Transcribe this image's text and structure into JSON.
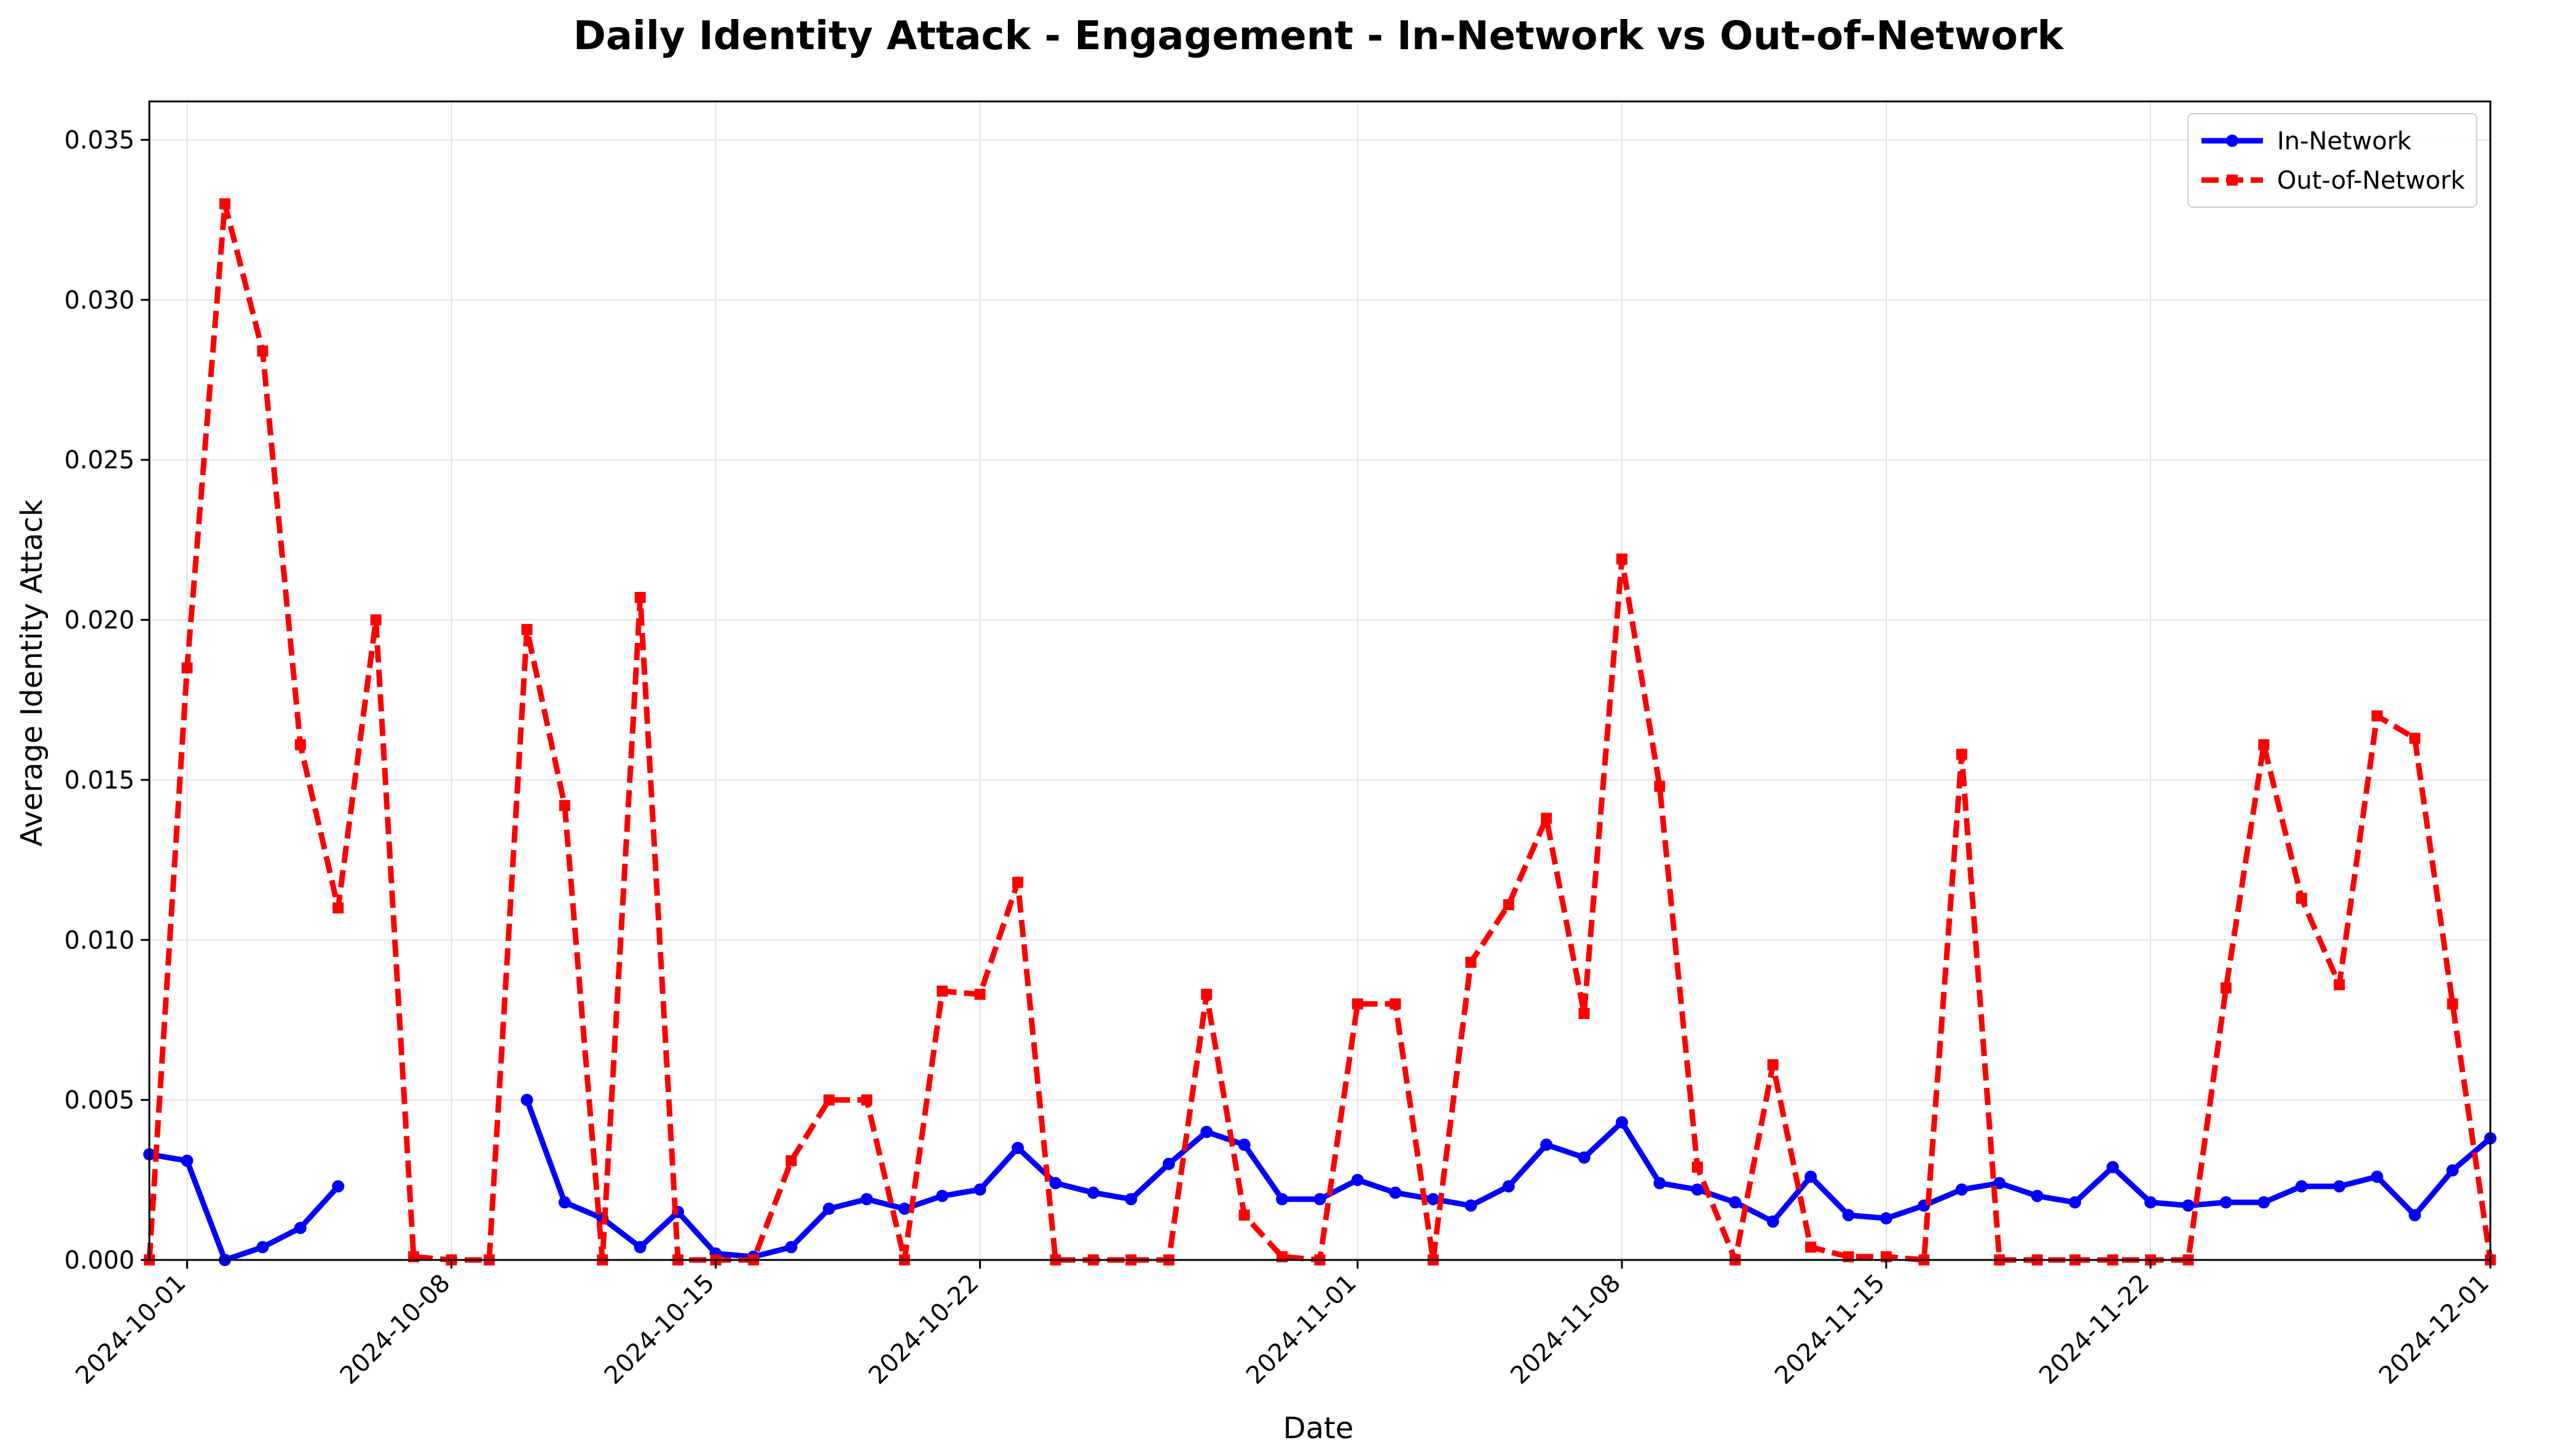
{
  "chart_data": {
    "type": "line",
    "title": "Daily Identity Attack - Engagement - In-Network vs Out-of-Network",
    "xlabel": "Date",
    "ylabel": "Average Identity Attack",
    "xlim": [
      "2024-09-30",
      "2024-12-01"
    ],
    "ylim": [
      0,
      0.0362
    ],
    "x_ticks": [
      "2024-10-01",
      "2024-10-08",
      "2024-10-15",
      "2024-10-22",
      "2024-11-01",
      "2024-11-08",
      "2024-11-15",
      "2024-11-22",
      "2024-12-01"
    ],
    "y_ticks": [
      "0.000",
      "0.005",
      "0.010",
      "0.015",
      "0.020",
      "0.025",
      "0.030",
      "0.035"
    ],
    "grid": true,
    "legend_position": "top-right",
    "series": [
      {
        "name": "In-Network",
        "color": "#0000ff",
        "style": "solid",
        "marker": "circle",
        "points": [
          [
            "2024-09-30",
            0.0033
          ],
          [
            "2024-10-01",
            0.0031
          ],
          [
            "2024-10-02",
            0.0
          ],
          [
            "2024-10-03",
            0.0004
          ],
          [
            "2024-10-04",
            0.001
          ],
          [
            "2024-10-05",
            0.0023
          ],
          [
            "2024-10-06",
            null
          ],
          [
            "2024-10-07",
            null
          ],
          [
            "2024-10-08",
            null
          ],
          [
            "2024-10-09",
            null
          ],
          [
            "2024-10-10",
            0.005
          ],
          [
            "2024-10-11",
            0.0018
          ],
          [
            "2024-10-12",
            0.0013
          ],
          [
            "2024-10-13",
            0.0004
          ],
          [
            "2024-10-14",
            0.0015
          ],
          [
            "2024-10-15",
            0.0002
          ],
          [
            "2024-10-16",
            0.0001
          ],
          [
            "2024-10-17",
            0.0004
          ],
          [
            "2024-10-18",
            0.0016
          ],
          [
            "2024-10-19",
            0.0019
          ],
          [
            "2024-10-20",
            0.0016
          ],
          [
            "2024-10-21",
            0.002
          ],
          [
            "2024-10-22",
            0.0022
          ],
          [
            "2024-10-23",
            0.0035
          ],
          [
            "2024-10-24",
            0.0024
          ],
          [
            "2024-10-25",
            0.0021
          ],
          [
            "2024-10-26",
            0.0019
          ],
          [
            "2024-10-27",
            0.003
          ],
          [
            "2024-10-28",
            0.004
          ],
          [
            "2024-10-29",
            0.0036
          ],
          [
            "2024-10-30",
            0.0019
          ],
          [
            "2024-10-31",
            0.0019
          ],
          [
            "2024-11-01",
            0.0025
          ],
          [
            "2024-11-02",
            0.0021
          ],
          [
            "2024-11-03",
            0.0019
          ],
          [
            "2024-11-04",
            0.0017
          ],
          [
            "2024-11-05",
            0.0023
          ],
          [
            "2024-11-06",
            0.0036
          ],
          [
            "2024-11-07",
            0.0032
          ],
          [
            "2024-11-08",
            0.0043
          ],
          [
            "2024-11-09",
            0.0024
          ],
          [
            "2024-11-10",
            0.0022
          ],
          [
            "2024-11-11",
            0.0018
          ],
          [
            "2024-11-12",
            0.0012
          ],
          [
            "2024-11-13",
            0.0026
          ],
          [
            "2024-11-14",
            0.0014
          ],
          [
            "2024-11-15",
            0.0013
          ],
          [
            "2024-11-16",
            0.0017
          ],
          [
            "2024-11-17",
            0.0022
          ],
          [
            "2024-11-18",
            0.0024
          ],
          [
            "2024-11-19",
            0.002
          ],
          [
            "2024-11-20",
            0.0018
          ],
          [
            "2024-11-21",
            0.0029
          ],
          [
            "2024-11-22",
            0.0018
          ],
          [
            "2024-11-23",
            0.0017
          ],
          [
            "2024-11-24",
            0.0018
          ],
          [
            "2024-11-25",
            0.0018
          ],
          [
            "2024-11-26",
            0.0023
          ],
          [
            "2024-11-27",
            0.0023
          ],
          [
            "2024-11-28",
            0.0026
          ],
          [
            "2024-11-29",
            0.0014
          ],
          [
            "2024-11-30",
            0.0028
          ],
          [
            "2024-12-01",
            0.0038
          ]
        ]
      },
      {
        "name": "Out-of-Network",
        "color": "#ff0000",
        "style": "dashed",
        "marker": "square",
        "points": [
          [
            "2024-09-30",
            0.0
          ],
          [
            "2024-10-01",
            0.0185
          ],
          [
            "2024-10-02",
            0.033
          ],
          [
            "2024-10-03",
            0.0284
          ],
          [
            "2024-10-04",
            0.0161
          ],
          [
            "2024-10-05",
            0.011
          ],
          [
            "2024-10-06",
            0.02
          ],
          [
            "2024-10-07",
            0.0001
          ],
          [
            "2024-10-08",
            0.0
          ],
          [
            "2024-10-09",
            0.0
          ],
          [
            "2024-10-10",
            0.0197
          ],
          [
            "2024-10-11",
            0.0142
          ],
          [
            "2024-10-12",
            0.0
          ],
          [
            "2024-10-13",
            0.0207
          ],
          [
            "2024-10-14",
            0.0
          ],
          [
            "2024-10-15",
            0.0
          ],
          [
            "2024-10-16",
            0.0
          ],
          [
            "2024-10-17",
            0.0031
          ],
          [
            "2024-10-18",
            0.005
          ],
          [
            "2024-10-19",
            0.005
          ],
          [
            "2024-10-20",
            0.0
          ],
          [
            "2024-10-21",
            0.0084
          ],
          [
            "2024-10-22",
            0.0083
          ],
          [
            "2024-10-23",
            0.0118
          ],
          [
            "2024-10-24",
            0.0
          ],
          [
            "2024-10-25",
            0.0
          ],
          [
            "2024-10-26",
            0.0
          ],
          [
            "2024-10-27",
            0.0
          ],
          [
            "2024-10-28",
            0.0083
          ],
          [
            "2024-10-29",
            0.0014
          ],
          [
            "2024-10-30",
            0.0001
          ],
          [
            "2024-10-31",
            0.0
          ],
          [
            "2024-11-01",
            0.008
          ],
          [
            "2024-11-02",
            0.008
          ],
          [
            "2024-11-03",
            0.0
          ],
          [
            "2024-11-04",
            0.0093
          ],
          [
            "2024-11-05",
            0.0111
          ],
          [
            "2024-11-06",
            0.0138
          ],
          [
            "2024-11-07",
            0.0077
          ],
          [
            "2024-11-08",
            0.0219
          ],
          [
            "2024-11-09",
            0.0148
          ],
          [
            "2024-11-10",
            0.0029
          ],
          [
            "2024-11-11",
            0.0
          ],
          [
            "2024-11-12",
            0.0061
          ],
          [
            "2024-11-13",
            0.0004
          ],
          [
            "2024-11-14",
            0.0001
          ],
          [
            "2024-11-15",
            0.0001
          ],
          [
            "2024-11-16",
            0.0
          ],
          [
            "2024-11-17",
            0.0158
          ],
          [
            "2024-11-18",
            0.0
          ],
          [
            "2024-11-19",
            0.0
          ],
          [
            "2024-11-20",
            0.0
          ],
          [
            "2024-11-21",
            0.0
          ],
          [
            "2024-11-22",
            0.0
          ],
          [
            "2024-11-23",
            0.0
          ],
          [
            "2024-11-24",
            0.0085
          ],
          [
            "2024-11-25",
            0.0161
          ],
          [
            "2024-11-26",
            0.0113
          ],
          [
            "2024-11-27",
            0.0086
          ],
          [
            "2024-11-28",
            0.017
          ],
          [
            "2024-11-29",
            0.0163
          ],
          [
            "2024-11-30",
            0.008
          ],
          [
            "2024-12-01",
            0.0
          ]
        ]
      }
    ]
  }
}
